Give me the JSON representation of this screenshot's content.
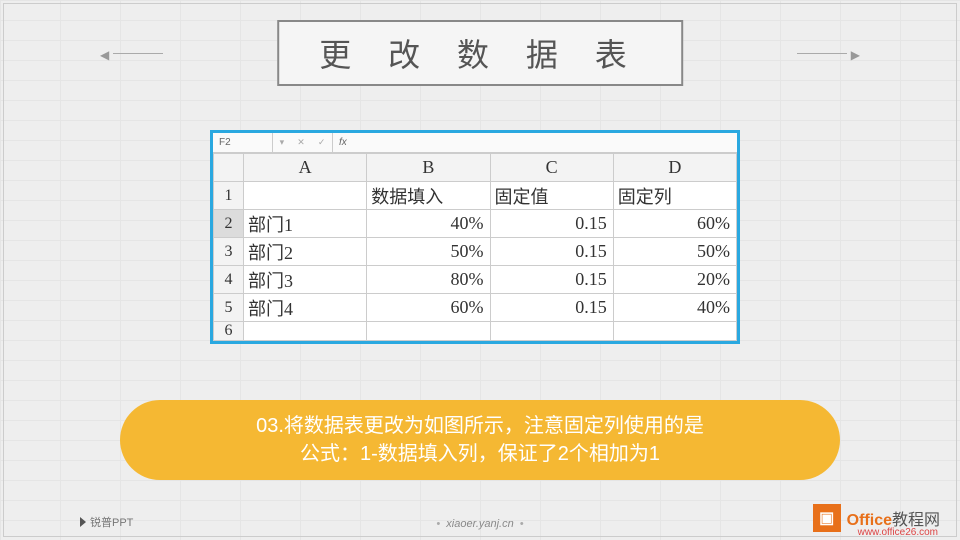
{
  "title": "更 改 数 据 表",
  "excel": {
    "name_box": "F2",
    "columns": [
      "A",
      "B",
      "C",
      "D"
    ],
    "headers": [
      "",
      "数据填入",
      "固定值",
      "固定列"
    ],
    "rows": [
      {
        "n": "2",
        "a": "部门1",
        "b": "40%",
        "c": "0.15",
        "d": "60%"
      },
      {
        "n": "3",
        "a": "部门2",
        "b": "50%",
        "c": "0.15",
        "d": "50%"
      },
      {
        "n": "4",
        "a": "部门3",
        "b": "80%",
        "c": "0.15",
        "d": "20%"
      },
      {
        "n": "5",
        "a": "部门4",
        "b": "60%",
        "c": "0.15",
        "d": "40%"
      }
    ],
    "partial_row": "6"
  },
  "caption": {
    "line1": "03.将数据表更改为如图所示，注意固定列使用的是",
    "line2": "公式：1-数据填入列，保证了2个相加为1"
  },
  "footer": "xiaoer.yanj.cn",
  "logo_left": "锐普PPT",
  "watermark": {
    "t1": "Office",
    "t2": "教程网",
    "sub": "www.office26.com"
  },
  "colors": {
    "frame": "#2aa8e0",
    "pill": "#f5b833",
    "wm": "#e8701a"
  }
}
